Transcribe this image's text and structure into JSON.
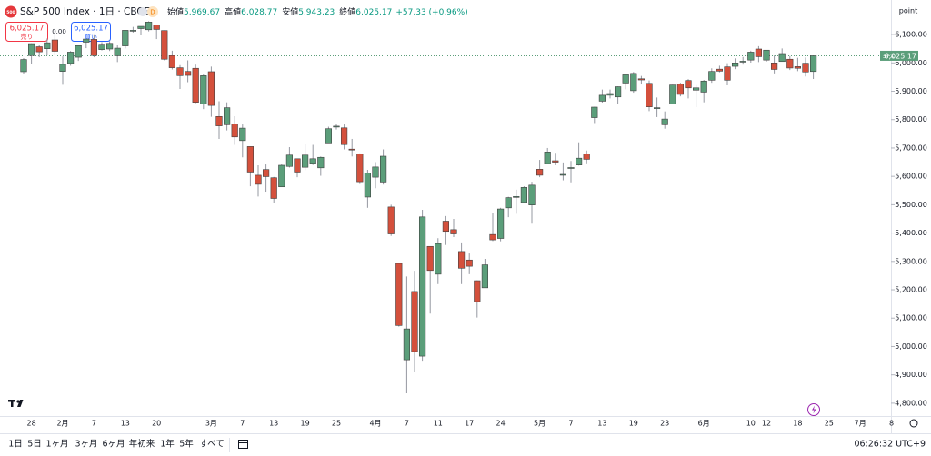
{
  "header": {
    "logo": "500",
    "title": "S&P 500 Index · 1日 · CBOE",
    "interval_badge": "D",
    "ohlc": [
      {
        "label": "始値",
        "value": "5,969.67"
      },
      {
        "label": "高値",
        "value": "6,028.77"
      },
      {
        "label": "安値",
        "value": "5,943.23"
      },
      {
        "label": "終値",
        "value": "6,025.17"
      }
    ],
    "change": "+57.33 (+0.96%)"
  },
  "trade": {
    "sell_price": "6,025.17",
    "sell": "売り",
    "spread": "0.00",
    "buy_price": "6,025.17",
    "buy": "買い"
  },
  "chart_data": {
    "type": "candlestick",
    "y_axis_label": "point",
    "symbol_label": "SPX",
    "up_color": "#5b9e7a",
    "down_color": "#d4503c",
    "grid": false,
    "last_price": {
      "value": 6025.17,
      "label": "6,025.17"
    },
    "ylim": [
      4742,
      6222
    ],
    "yticks": [
      {
        "value": 4800,
        "label": "4,800.00"
      },
      {
        "value": 4900,
        "label": "4,900.00"
      },
      {
        "value": 5000,
        "label": "5,000.00"
      },
      {
        "value": 5100,
        "label": "5,100.00"
      },
      {
        "value": 5200,
        "label": "5,200.00"
      },
      {
        "value": 5300,
        "label": "5,300.00"
      },
      {
        "value": 5400,
        "label": "5,400.00"
      },
      {
        "value": 5500,
        "label": "5,500.00"
      },
      {
        "value": 5600,
        "label": "5,600.00"
      },
      {
        "value": 5700,
        "label": "5,700.00"
      },
      {
        "value": 5800,
        "label": "5,800.00"
      },
      {
        "value": 5900,
        "label": "5,900.00"
      },
      {
        "value": 6000,
        "label": "6,000.00"
      },
      {
        "value": 6100,
        "label": "6,100.00"
      }
    ],
    "categories": [
      null,
      "28",
      null,
      null,
      null,
      "2月",
      null,
      null,
      null,
      "7",
      null,
      null,
      null,
      "13",
      null,
      null,
      null,
      "20",
      null,
      null,
      null,
      null,
      null,
      null,
      "3月",
      null,
      null,
      null,
      "7",
      null,
      null,
      null,
      "13",
      null,
      null,
      null,
      "19",
      null,
      null,
      null,
      "25",
      null,
      null,
      null,
      null,
      "4月",
      null,
      null,
      null,
      "7",
      null,
      null,
      null,
      "11",
      null,
      null,
      null,
      "17",
      null,
      null,
      null,
      "24",
      null,
      null,
      null,
      null,
      "5月",
      null,
      null,
      null,
      "7",
      null,
      null,
      null,
      "13",
      null,
      null,
      null,
      "19",
      null,
      null,
      null,
      "23",
      null,
      null,
      null,
      null,
      "6月",
      null,
      null,
      null,
      null,
      null,
      "10",
      null,
      "12",
      null,
      null,
      null,
      "18",
      null,
      null,
      null,
      "25",
      null,
      null,
      null,
      "7月",
      null,
      null,
      null,
      "8"
    ],
    "open": [
      5969,
      6026,
      6057,
      6050,
      6081,
      5970,
      5998,
      6020,
      6073,
      6083,
      6047,
      6049,
      6025,
      6060,
      6115,
      6121,
      6117,
      6134,
      6114,
      6026,
      5983,
      5970,
      5981,
      5856,
      5969,
      5811,
      5782,
      5785,
      5726,
      5705,
      5604,
      5624,
      5595,
      5563,
      5635,
      5662,
      5632,
      5646,
      5630,
      5718,
      5776,
      5771,
      5696,
      5679,
      5527,
      5597,
      5580,
      5492,
      5293,
      4953,
      5194,
      4966,
      5353,
      5255,
      5442,
      5412,
      5335,
      5305,
      5232,
      5207,
      5395,
      5381,
      5489,
      5529,
      5508,
      5499,
      5625,
      5645,
      5655,
      5605,
      5629,
      5640,
      5679,
      5807,
      5865,
      5886,
      5880,
      5929,
      5902,
      5944,
      5928,
      5841,
      5782,
      5855,
      5925,
      5938,
      5904,
      5897,
      5939,
      5978,
      5986,
      5988,
      6005,
      6010,
      6049,
      6010,
      6000,
      6005,
      6013,
      5987,
      5999,
      5969.67,
      null,
      null,
      null,
      null,
      null,
      null,
      null,
      null,
      null,
      null
    ],
    "high": [
      6017,
      6069,
      6063,
      6086,
      6121,
      6023,
      6042,
      6062,
      6084,
      6101,
      6073,
      6076,
      6063,
      6116,
      6127,
      6129,
      6147,
      6134,
      6115,
      6043,
      5992,
      6009,
      5994,
      5959,
      5987,
      5865,
      5861,
      5812,
      5783,
      5705,
      5639,
      5642,
      5598,
      5645,
      5703,
      5662,
      5715,
      5711,
      5670,
      5775,
      5786,
      5783,
      5732,
      5681,
      5623,
      5650,
      5695,
      5500,
      5293,
      5247,
      5267,
      5482,
      5353,
      5382,
      5460,
      5450,
      5367,
      5328,
      5233,
      5309,
      5470,
      5489,
      5528,
      5553,
      5565,
      5581,
      5658,
      5700,
      5683,
      5649,
      5654,
      5720,
      5691,
      5845,
      5906,
      5906,
      5917,
      5958,
      5968,
      5954,
      5938,
      5878,
      5829,
      5923,
      5930,
      5943,
      5922,
      5940,
      5981,
      5990,
      5999,
      6016,
      6021,
      6043,
      6059,
      6046,
      6026,
      6051,
      6024,
      6018,
      6019,
      6028.77,
      null,
      null,
      null,
      null,
      null,
      null,
      null,
      null,
      null,
      null
    ],
    "low": [
      5962,
      5995,
      6020,
      6028,
      6030,
      5923,
      5990,
      6007,
      6052,
      6020,
      6044,
      6042,
      6003,
      6051,
      6107,
      6099,
      6111,
      6084,
      6009,
      5977,
      5908,
      5932,
      5858,
      5837,
      5810,
      5732,
      5762,
      5711,
      5667,
      5565,
      5529,
      5546,
      5505,
      5563,
      5631,
      5597,
      5622,
      5640,
      5602,
      5718,
      5765,
      5695,
      5670,
      5573,
      5489,
      5558,
      5571,
      5390,
      5070,
      4835,
      4910,
      4950,
      5116,
      5220,
      5358,
      5386,
      5220,
      5255,
      5102,
      5207,
      5372,
      5371,
      5456,
      5468,
      5505,
      5433,
      5597,
      5645,
      5639,
      5586,
      5579,
      5638,
      5646,
      5788,
      5860,
      5875,
      5856,
      5907,
      5895,
      5924,
      5830,
      5809,
      5768,
      5855,
      5882,
      5875,
      5844,
      5861,
      5930,
      5967,
      5921,
      5978,
      5994,
      6001,
      6003,
      6004,
      5963,
      6005,
      5975,
      5971,
      5952,
      5943.23,
      null,
      null,
      null,
      null,
      null,
      null,
      null,
      null,
      null,
      null
    ],
    "close": [
      6012,
      6068,
      6039,
      6071,
      6041,
      5995,
      6038,
      6061,
      6084,
      6026,
      6066,
      6069,
      6052,
      6115,
      6115,
      6129,
      6144,
      6118,
      6013,
      5983,
      5955,
      5956,
      5861,
      5955,
      5850,
      5778,
      5842,
      5739,
      5770,
      5615,
      5572,
      5599,
      5522,
      5639,
      5675,
      5615,
      5675,
      5662,
      5667,
      5768,
      5777,
      5712,
      5693,
      5581,
      5612,
      5633,
      5671,
      5397,
      5074,
      5062,
      4982,
      5457,
      5268,
      5363,
      5406,
      5397,
      5276,
      5283,
      5158,
      5288,
      5376,
      5485,
      5525,
      5529,
      5561,
      5569,
      5604,
      5686,
      5650,
      5607,
      5631,
      5664,
      5660,
      5844,
      5886,
      5892,
      5916,
      5958,
      5963,
      5940,
      5845,
      5842,
      5802,
      5922,
      5889,
      5912,
      5912,
      5936,
      5970,
      5971,
      5939,
      6000,
      6006,
      6038,
      6022,
      6045,
      5977,
      6033,
      5982,
      5981,
      5968,
      6025.17,
      null,
      null,
      null,
      null,
      null,
      null,
      null,
      null,
      null,
      null
    ]
  },
  "toolbar": {
    "ranges": [
      "1日",
      "5日",
      "1ヶ月",
      "3ヶ月",
      "6ヶ月",
      "年初来",
      "1年",
      "5年",
      "すべて"
    ],
    "clock": "06:26:32 UTC+9"
  }
}
